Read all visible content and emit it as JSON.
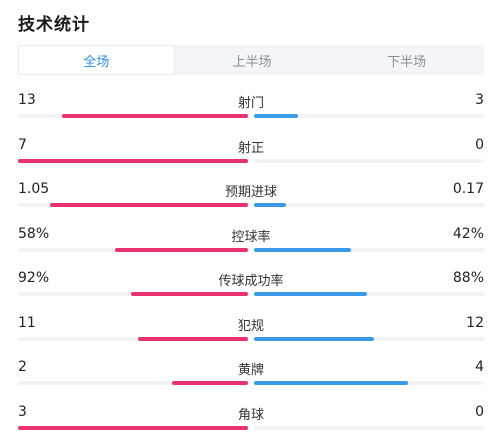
{
  "title": "技术统计",
  "tabs": [
    "全场",
    "上半场",
    "下半场"
  ],
  "active_tab": 0,
  "colors": {
    "home": "#e8326e",
    "away": "#3a9be8",
    "accent": "#2f8fe8"
  },
  "stats": [
    {
      "label": "射门",
      "home": "13",
      "away": "3",
      "home_share": 0.81,
      "away_share": 0.19
    },
    {
      "label": "射正",
      "home": "7",
      "away": "0",
      "home_share": 1.0,
      "away_share": 0.0
    },
    {
      "label": "预期进球",
      "home": "1.05",
      "away": "0.17",
      "home_share": 0.86,
      "away_share": 0.14
    },
    {
      "label": "控球率",
      "home": "58%",
      "away": "42%",
      "home_share": 0.58,
      "away_share": 0.42
    },
    {
      "label": "传球成功率",
      "home": "92%",
      "away": "88%",
      "home_share": 0.51,
      "away_share": 0.49
    },
    {
      "label": "犯规",
      "home": "11",
      "away": "12",
      "home_share": 0.48,
      "away_share": 0.52
    },
    {
      "label": "黄牌",
      "home": "2",
      "away": "4",
      "home_share": 0.33,
      "away_share": 0.67
    },
    {
      "label": "角球",
      "home": "3",
      "away": "0",
      "home_share": 1.0,
      "away_share": 0.0
    }
  ]
}
